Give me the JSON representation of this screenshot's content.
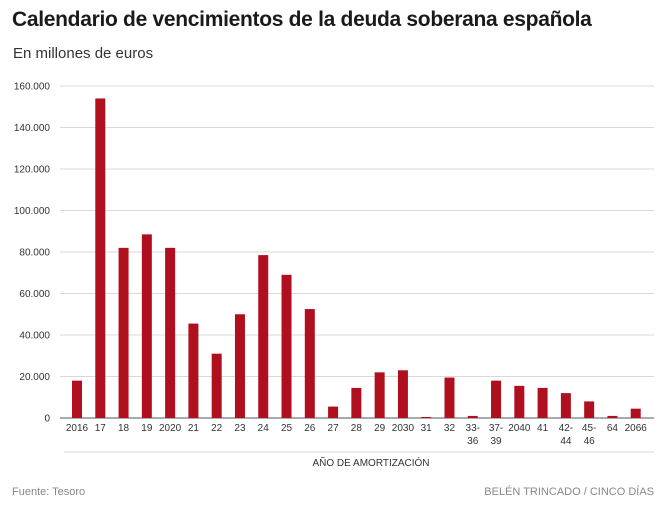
{
  "title": "Calendario de vencimientos de la deuda soberana española",
  "subtitle": "En millones de euros",
  "footer": {
    "source": "Fuente: Tesoro",
    "credit": "BELÉN TRINCADO / CINCO DÍAS"
  },
  "colors": {
    "bar": "#b0101e",
    "grid": "#d9d9d9",
    "axis": "#555555"
  },
  "chart_data": {
    "type": "bar",
    "title": "Calendario de vencimientos de la deuda soberana española",
    "subtitle": "En millones de euros",
    "xlabel": "AÑO DE AMORTIZACIÓN",
    "ylabel": "",
    "ylim": [
      0,
      160000
    ],
    "yticks": [
      0,
      20000,
      40000,
      60000,
      80000,
      100000,
      120000,
      140000,
      160000
    ],
    "ytick_labels": [
      "0",
      "20.000",
      "40.000",
      "60.000",
      "80.000",
      "100.000",
      "120.000",
      "140.000",
      "160.000"
    ],
    "grid": true,
    "categories": [
      "2016",
      "17",
      "18",
      "19",
      "2020",
      "21",
      "22",
      "23",
      "24",
      "25",
      "26",
      "27",
      "28",
      "29",
      "2030",
      "31",
      "32",
      "33-36",
      "37-39",
      "2040",
      "41",
      "42-44",
      "45-46",
      "64",
      "2066"
    ],
    "category_lines": [
      [
        "2016"
      ],
      [
        "17"
      ],
      [
        "18"
      ],
      [
        "19"
      ],
      [
        "2020"
      ],
      [
        "21"
      ],
      [
        "22"
      ],
      [
        "23"
      ],
      [
        "24"
      ],
      [
        "25"
      ],
      [
        "26"
      ],
      [
        "27"
      ],
      [
        "28"
      ],
      [
        "29"
      ],
      [
        "2030"
      ],
      [
        "31"
      ],
      [
        "32"
      ],
      [
        "33-",
        "36"
      ],
      [
        "37-",
        "39"
      ],
      [
        "2040"
      ],
      [
        "41"
      ],
      [
        "42-",
        "44"
      ],
      [
        "45-",
        "46"
      ],
      [
        "64"
      ],
      [
        "2066"
      ]
    ],
    "values": [
      18000,
      154000,
      82000,
      88500,
      82000,
      45500,
      31000,
      50000,
      78500,
      69000,
      52500,
      5500,
      14500,
      22000,
      23000,
      500,
      19500,
      1000,
      18000,
      15500,
      14500,
      12000,
      8000,
      1000,
      4500
    ]
  }
}
